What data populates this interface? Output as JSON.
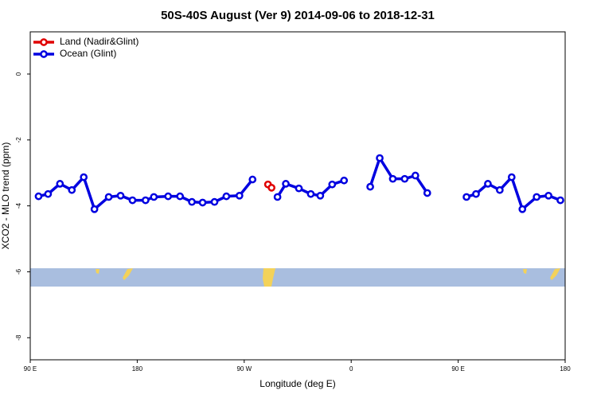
{
  "chart_data": {
    "type": "line",
    "title": "50S-40S August (Ver 9)   2014-09-06 to 2018-12-31",
    "x_label": "Longitude (deg E)",
    "y_label": "XCO2 - MLO trend (ppm)",
    "xlim": [
      90,
      540
    ],
    "ylim": [
      -8.67,
      1.28
    ],
    "xticks": [
      {
        "value": 90,
        "label": "90 E"
      },
      180,
      {
        "value": 270,
        "label": "90 W"
      },
      {
        "value": 360,
        "label": "0"
      },
      {
        "value": 450,
        "label": "90 E"
      },
      {
        "value": 540,
        "label": "180"
      }
    ],
    "yticks": [
      0,
      -2,
      -4,
      -6,
      -8
    ],
    "legend": "top-left",
    "series": [
      {
        "name": "Land (Nadir&Glint)",
        "color": "#e00000",
        "x": [
          290,
          293
        ],
        "values": [
          -3.35,
          -3.45
        ]
      },
      {
        "name": "Ocean (Glint)",
        "color": "#0000e0",
        "x": [
          97,
          105,
          115,
          125,
          135,
          144,
          156,
          166,
          176,
          187,
          194,
          206,
          216,
          226,
          235,
          245,
          255,
          266,
          277,
          287,
          298,
          305,
          316,
          326,
          334,
          344,
          354,
          365,
          376,
          384,
          395,
          405,
          414,
          424,
          440,
          457,
          465,
          475,
          485,
          495,
          504,
          516,
          526,
          536
        ],
        "values": [
          -3.71,
          -3.64,
          -3.33,
          -3.52,
          -3.13,
          -4.1,
          -3.73,
          -3.69,
          -3.83,
          -3.83,
          -3.73,
          -3.71,
          -3.71,
          -3.88,
          -3.9,
          -3.88,
          -3.71,
          -3.69,
          -3.2,
          null,
          -3.73,
          -3.33,
          -3.47,
          -3.64,
          -3.69,
          -3.35,
          -3.23,
          null,
          -3.42,
          -2.55,
          -3.18,
          -3.18,
          -3.08,
          -3.61,
          null,
          -3.73,
          -3.64,
          -3.33,
          -3.52,
          -3.13,
          -4.1,
          -3.73,
          -3.69,
          -3.83
        ]
      }
    ]
  }
}
